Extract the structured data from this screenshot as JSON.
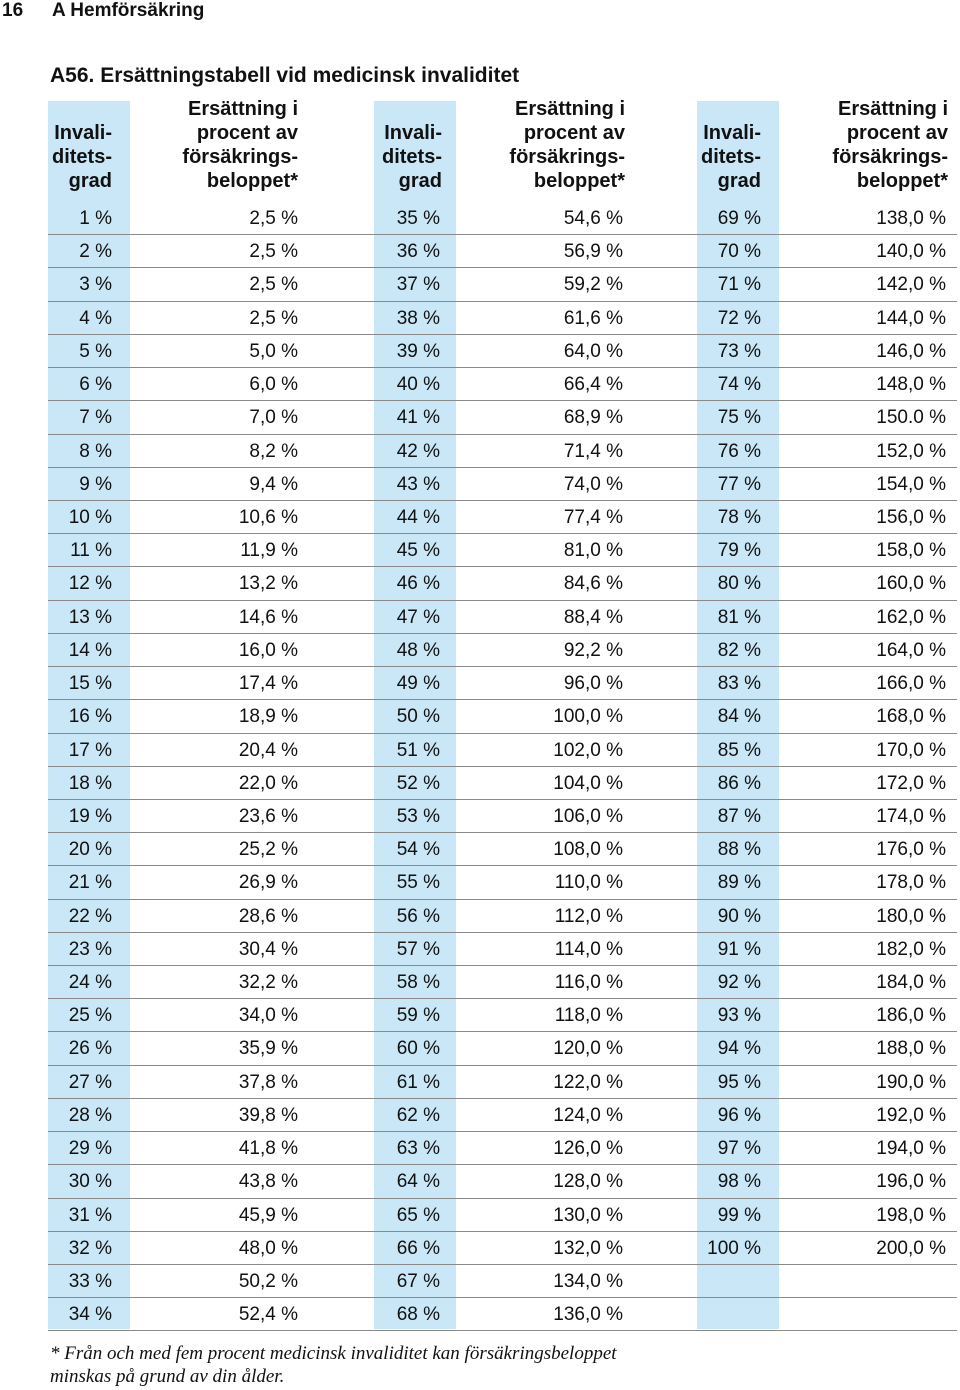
{
  "page_header": {
    "page_number": "16",
    "title": "A Hemförsäkring"
  },
  "section_title": "A56. Ersättningstabell vid medicinsk invaliditet",
  "columns": [
    {
      "grade_header": "Invali-\nditets-\ngrad",
      "percent_header": "Ersättning i\nprocent av\nförsäkrings-\nbeloppet*"
    },
    {
      "grade_header": "Invali-\nditets-\ngrad",
      "percent_header": "Ersättning i\nprocent av\nförsäkrings-\nbeloppet*"
    },
    {
      "grade_header": "Invali-\nditets-\ngrad",
      "percent_header": "Ersättning i\nprocent av\nförsäkrings-\nbeloppet*"
    }
  ],
  "rows": [
    [
      "1 %",
      "2,5 %",
      "35 %",
      "54,6 %",
      "69 %",
      "138,0 %"
    ],
    [
      "2 %",
      "2,5 %",
      "36 %",
      "56,9 %",
      "70 %",
      "140,0 %"
    ],
    [
      "3 %",
      "2,5 %",
      "37 %",
      "59,2 %",
      "71 %",
      "142,0 %"
    ],
    [
      "4 %",
      "2,5 %",
      "38 %",
      "61,6 %",
      "72 %",
      "144,0 %"
    ],
    [
      "5 %",
      "5,0 %",
      "39 %",
      "64,0 %",
      "73 %",
      "146,0 %"
    ],
    [
      "6 %",
      "6,0 %",
      "40 %",
      "66,4 %",
      "74 %",
      "148,0 %"
    ],
    [
      "7 %",
      "7,0 %",
      "41 %",
      "68,9 %",
      "75 %",
      "150.0 %"
    ],
    [
      "8 %",
      "8,2 %",
      "42 %",
      "71,4 %",
      "76 %",
      "152,0 %"
    ],
    [
      "9 %",
      "9,4 %",
      "43 %",
      "74,0 %",
      "77 %",
      "154,0 %"
    ],
    [
      "10 %",
      "10,6 %",
      "44 %",
      "77,4 %",
      "78 %",
      "156,0 %"
    ],
    [
      "11 %",
      "11,9 %",
      "45 %",
      "81,0 %",
      "79 %",
      "158,0 %"
    ],
    [
      "12 %",
      "13,2 %",
      "46 %",
      "84,6 %",
      "80 %",
      "160,0 %"
    ],
    [
      "13 %",
      "14,6 %",
      "47 %",
      "88,4 %",
      "81 %",
      "162,0 %"
    ],
    [
      "14 %",
      "16,0 %",
      "48 %",
      "92,2 %",
      "82 %",
      "164,0 %"
    ],
    [
      "15 %",
      "17,4 %",
      "49 %",
      "96,0 %",
      "83 %",
      "166,0 %"
    ],
    [
      "16 %",
      "18,9 %",
      "50 %",
      "100,0 %",
      "84 %",
      "168,0 %"
    ],
    [
      "17 %",
      "20,4 %",
      "51 %",
      "102,0 %",
      "85 %",
      "170,0 %"
    ],
    [
      "18 %",
      "22,0 %",
      "52 %",
      "104,0 %",
      "86 %",
      "172,0 %"
    ],
    [
      "19 %",
      "23,6 %",
      "53 %",
      "106,0 %",
      "87 %",
      "174,0 %"
    ],
    [
      "20 %",
      "25,2 %",
      "54 %",
      "108,0 %",
      "88 %",
      "176,0 %"
    ],
    [
      "21 %",
      "26,9 %",
      "55 %",
      "110,0 %",
      "89 %",
      "178,0 %"
    ],
    [
      "22 %",
      "28,6 %",
      "56 %",
      "112,0 %",
      "90 %",
      "180,0 %"
    ],
    [
      "23 %",
      "30,4 %",
      "57 %",
      "114,0 %",
      "91 %",
      "182,0 %"
    ],
    [
      "24 %",
      "32,2 %",
      "58 %",
      "116,0 %",
      "92 %",
      "184,0 %"
    ],
    [
      "25 %",
      "34,0 %",
      "59 %",
      "118,0 %",
      "93 %",
      "186,0 %"
    ],
    [
      "26 %",
      "35,9 %",
      "60 %",
      "120,0 %",
      "94 %",
      "188,0 %"
    ],
    [
      "27 %",
      "37,8 %",
      "61 %",
      "122,0 %",
      "95 %",
      "190,0 %"
    ],
    [
      "28 %",
      "39,8 %",
      "62 %",
      "124,0 %",
      "96 %",
      "192,0 %"
    ],
    [
      "29 %",
      "41,8 %",
      "63 %",
      "126,0 %",
      "97 %",
      "194,0 %"
    ],
    [
      "30 %",
      "43,8 %",
      "64 %",
      "128,0 %",
      "98 %",
      "196,0 %"
    ],
    [
      "31 %",
      "45,9 %",
      "65 %",
      "130,0 %",
      "99 %",
      "198,0 %"
    ],
    [
      "32 %",
      "48,0 %",
      "66 %",
      "132,0 %",
      "100 %",
      "200,0 %"
    ],
    [
      "33 %",
      "50,2 %",
      "67 %",
      "134,0 %",
      "",
      ""
    ],
    [
      "34 %",
      "52,4 %",
      "68 %",
      "136,0 %",
      "",
      ""
    ]
  ],
  "footnote": "* Från och med fem procent medicinsk invaliditet kan försäkringsbeloppet\nminskas på grund av din ålder.",
  "colors": {
    "grade_column_bg": "#c9e7f7",
    "rule": "#8a8a8a"
  }
}
